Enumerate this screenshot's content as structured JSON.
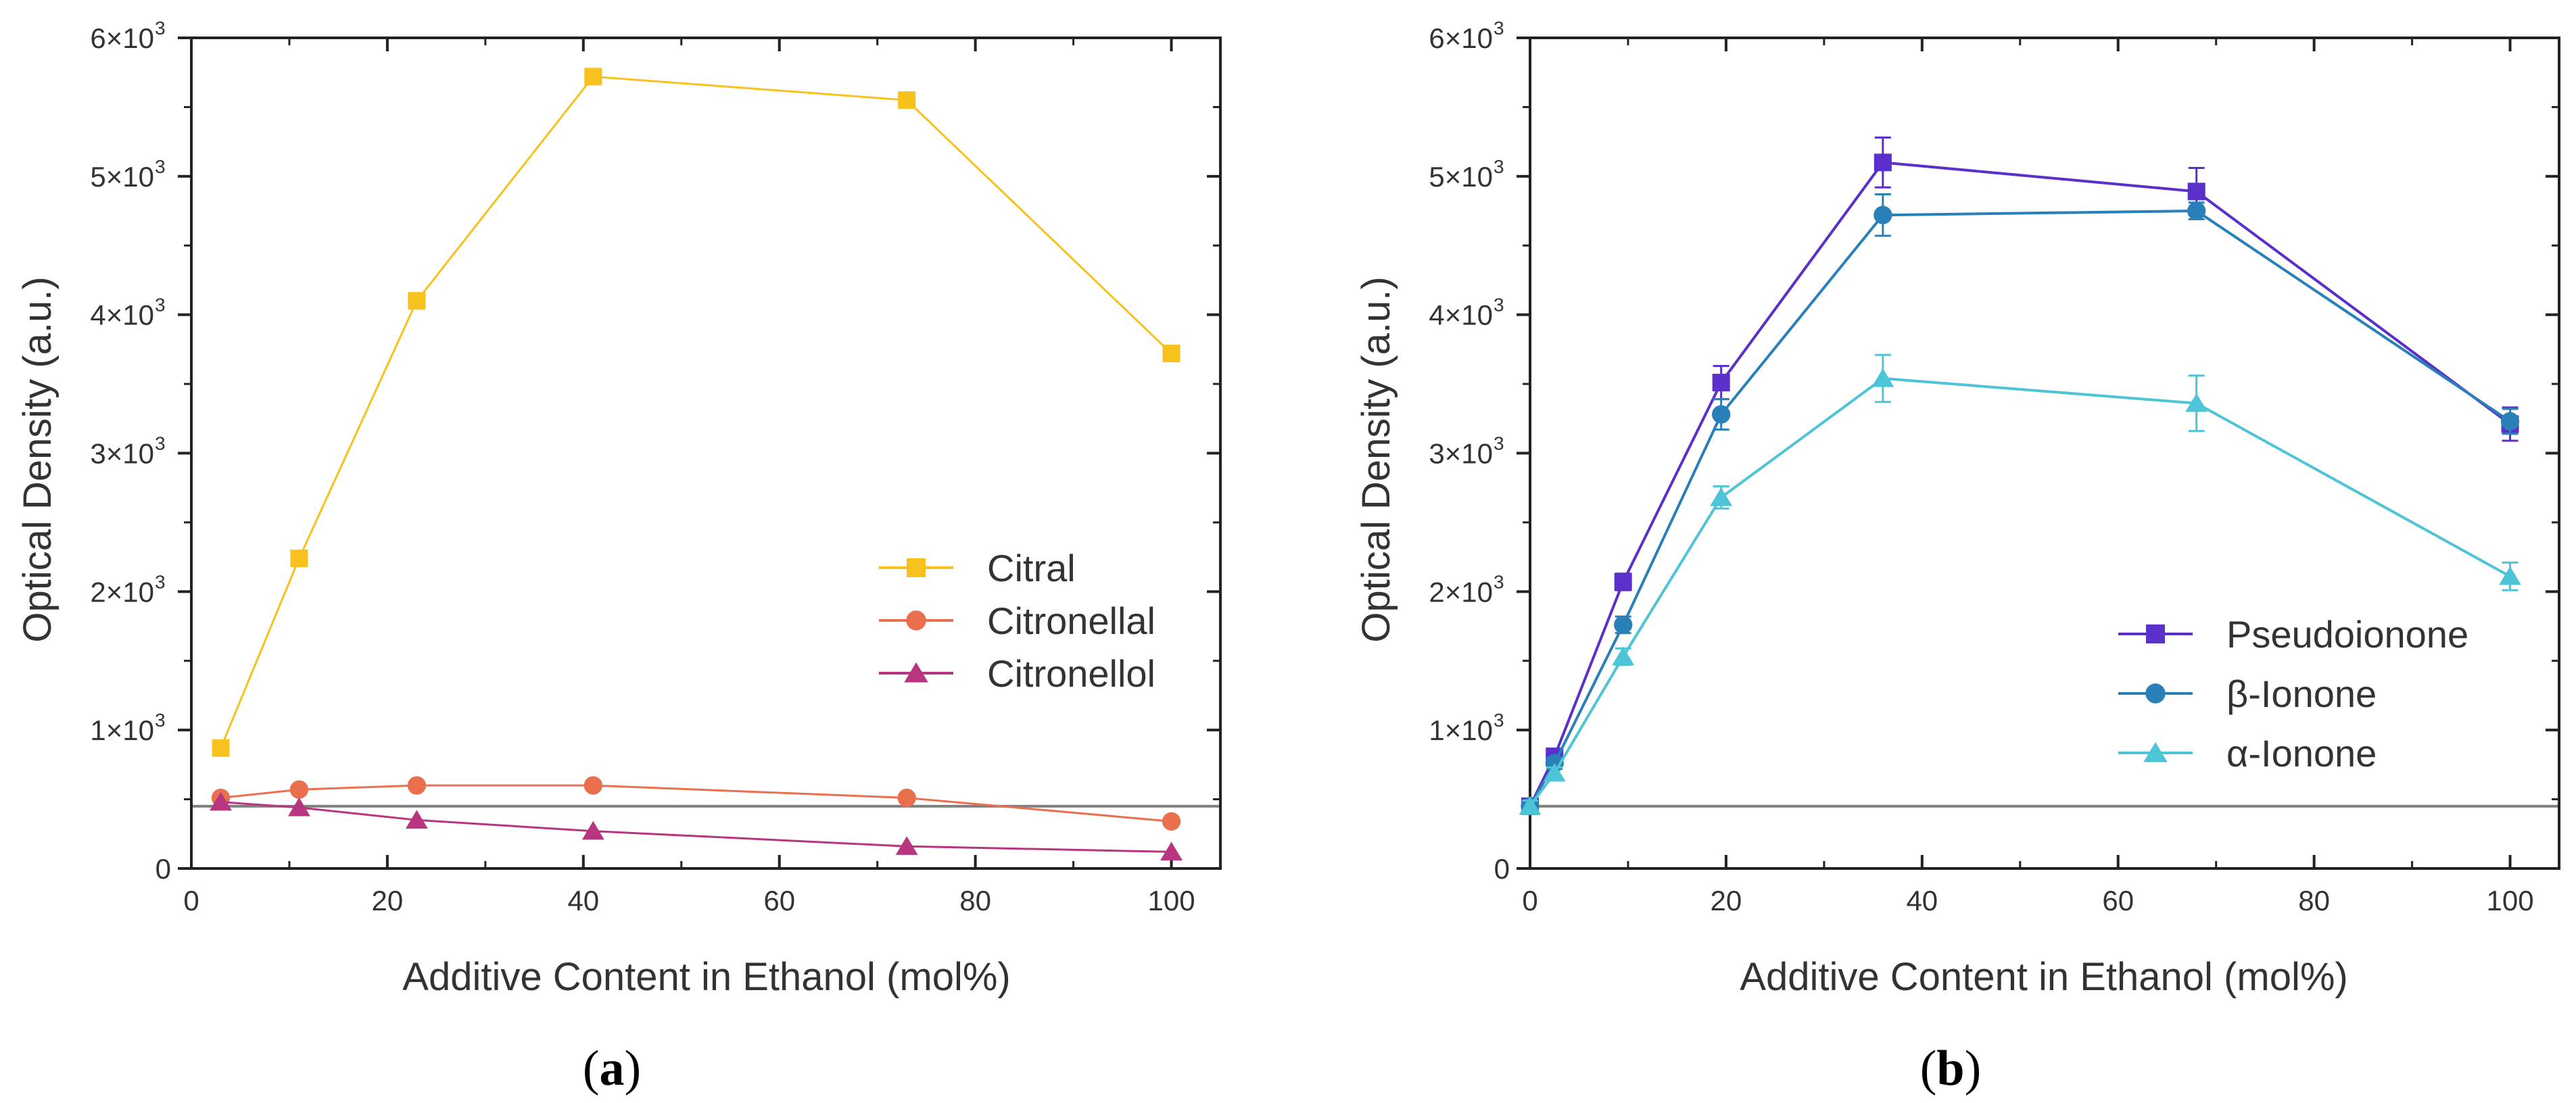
{
  "chart_data": [
    {
      "type": "line",
      "panel_label": "a",
      "xlabel": "Additive Content in Ethanol (mol%)",
      "ylabel": "Optical Density (a.u.)",
      "xlim": [
        0,
        105
      ],
      "ylim": [
        0,
        6000
      ],
      "xticks": [
        0,
        20,
        40,
        60,
        80,
        100
      ],
      "yticks": [
        0,
        1000,
        2000,
        3000,
        4000,
        5000,
        6000
      ],
      "ytick_labels": [
        "0",
        "1×10",
        "2×10",
        "3×10",
        "4×10",
        "5×10",
        "6×10"
      ],
      "ytick_exponent": "3",
      "reference_line": 450,
      "legend_position": "center-right",
      "series": [
        {
          "name": "Citral",
          "marker": "square",
          "color": "#F7C21E",
          "x": [
            3,
            11,
            23,
            41,
            73,
            100
          ],
          "y": [
            870,
            2240,
            4100,
            5720,
            5550,
            3720
          ]
        },
        {
          "name": "Citronellal",
          "marker": "circle",
          "color": "#EA6F4C",
          "x": [
            3,
            11,
            23,
            41,
            73,
            100
          ],
          "y": [
            510,
            570,
            600,
            600,
            510,
            340
          ]
        },
        {
          "name": "Citronellol",
          "marker": "triangle",
          "color": "#B8357F",
          "x": [
            3,
            11,
            23,
            41,
            73,
            100
          ],
          "y": [
            480,
            440,
            350,
            270,
            160,
            120
          ]
        }
      ]
    },
    {
      "type": "line",
      "panel_label": "b",
      "xlabel": "Additive Content in Ethanol (mol%)",
      "ylabel": "Optical Density (a.u.)",
      "xlim": [
        0,
        105
      ],
      "ylim": [
        0,
        6000
      ],
      "xticks": [
        0,
        20,
        40,
        60,
        80,
        100
      ],
      "yticks": [
        0,
        1000,
        2000,
        3000,
        4000,
        5000,
        6000
      ],
      "ytick_labels": [
        "0",
        "1×10",
        "2×10",
        "3×10",
        "4×10",
        "5×10",
        "6×10"
      ],
      "ytick_exponent": "3",
      "reference_line": 450,
      "legend_position": "bottom-right",
      "series": [
        {
          "name": "Pseudoionone",
          "marker": "square",
          "color": "#5B2FC9",
          "x": [
            0,
            2.5,
            9.5,
            19.5,
            36,
            68,
            100
          ],
          "y": [
            450,
            810,
            2070,
            3510,
            5100,
            4890,
            3210
          ],
          "err": [
            40,
            40,
            60,
            120,
            180,
            170,
            120
          ]
        },
        {
          "name": "β-Ionone",
          "marker": "circle",
          "color": "#2980B9",
          "x": [
            0,
            2.5,
            9.5,
            19.5,
            36,
            68,
            100
          ],
          "y": [
            450,
            760,
            1760,
            3280,
            4720,
            4750,
            3230
          ],
          "err": [
            40,
            40,
            60,
            110,
            150,
            60,
            90
          ]
        },
        {
          "name": "α-Ionone",
          "marker": "triangle",
          "color": "#4DC5D6",
          "x": [
            0,
            2.5,
            9.5,
            19.5,
            36,
            68,
            100
          ],
          "y": [
            450,
            690,
            1530,
            2680,
            3540,
            3360,
            2110
          ],
          "err": [
            40,
            40,
            60,
            80,
            170,
            200,
            100
          ]
        }
      ]
    }
  ],
  "captions": {
    "a": {
      "open": "(",
      "letter": "a",
      "close": ")"
    },
    "b": {
      "open": "(",
      "letter": "b",
      "close": ")"
    }
  }
}
